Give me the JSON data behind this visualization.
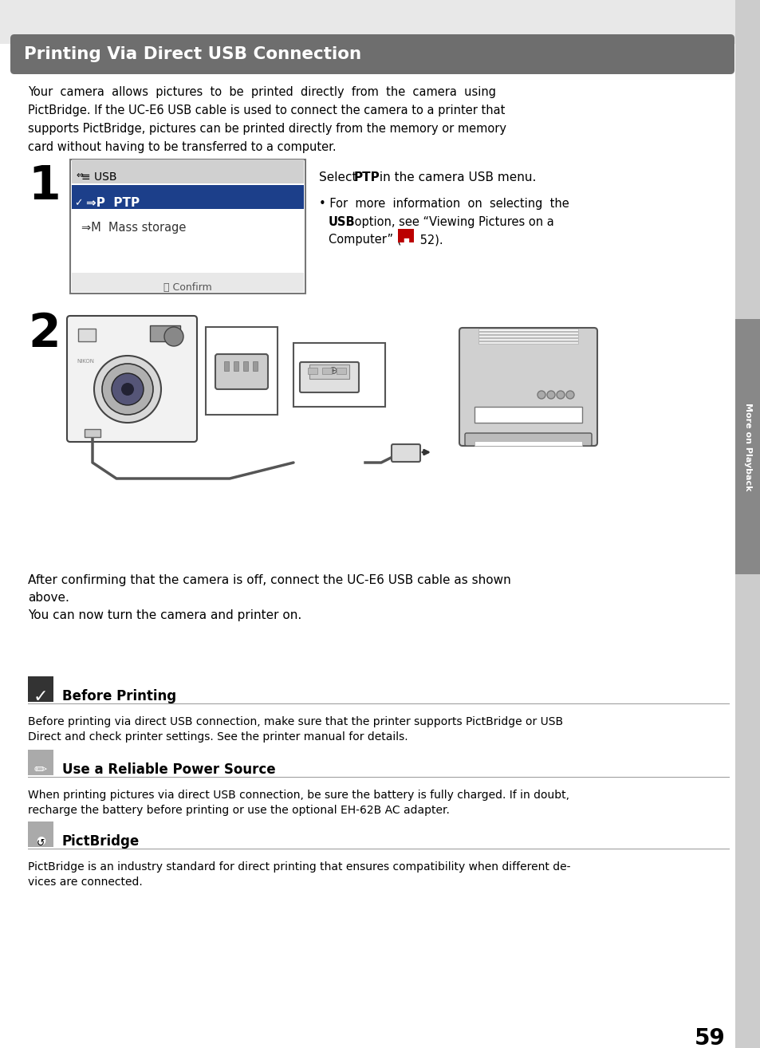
{
  "bg_color": "#ffffff",
  "title_bg": "#6e6e6e",
  "title_text": "Printing Via Direct USB Connection",
  "title_color": "#ffffff",
  "sidebar_text": "More on Playback",
  "intro_lines": [
    "Your  camera  allows  pictures  to  be  printed  directly  from  the  camera  using",
    "PictBridge. If the UC-E6 USB cable is used to connect the camera to a printer that",
    "supports PictBridge, pictures can be printed directly from the memory or memory",
    "card without having to be transferred to a computer."
  ],
  "step1_num": "1",
  "step2_num": "2",
  "step2_caption": [
    "After confirming that the camera is off, connect the UC-E6 USB cable as shown",
    "above.",
    "You can now turn the camera and printer on."
  ],
  "section1_title": "Before Printing",
  "section1_text": [
    "Before printing via direct USB connection, make sure that the printer supports PictBridge or USB",
    "Direct and check printer settings. See the printer manual for details."
  ],
  "section2_title": "Use a Reliable Power Source",
  "section2_text": [
    "When printing pictures via direct USB connection, be sure the battery is fully charged. If in doubt,",
    "recharge the battery before printing or use the optional EH-62B AC adapter."
  ],
  "section3_title": "PictBridge",
  "section3_text": [
    "PictBridge is an industry standard for direct printing that ensures compatibility when different de-",
    "vices are connected."
  ],
  "page_number": "59"
}
